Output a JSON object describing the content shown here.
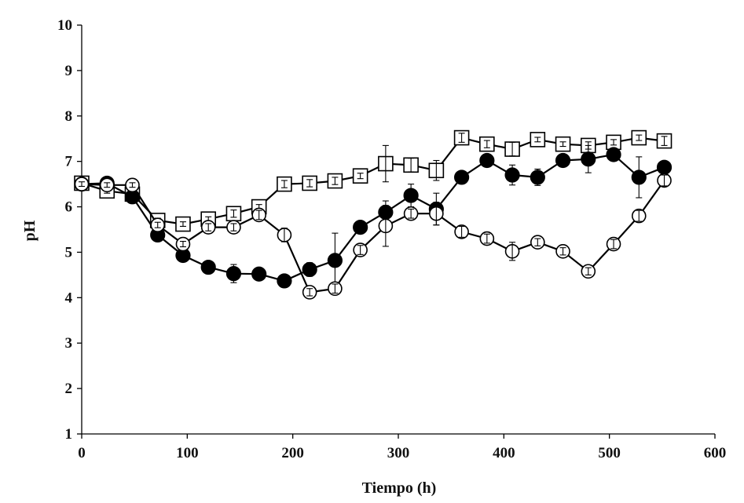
{
  "chart_data": {
    "type": "line",
    "title": "",
    "xlabel": "Tiempo (h)",
    "ylabel": "pH",
    "xlim": [
      0,
      600
    ],
    "ylim": [
      1,
      10
    ],
    "xticks": [
      0,
      100,
      200,
      300,
      400,
      500,
      600
    ],
    "yticks": [
      1,
      2,
      3,
      4,
      5,
      6,
      7,
      8,
      9,
      10
    ],
    "grid": false,
    "legend": "none",
    "series": [
      {
        "name": "open-squares",
        "marker": "square-open",
        "x": [
          0,
          24,
          48,
          72,
          96,
          120,
          144,
          168,
          192,
          216,
          240,
          264,
          288,
          312,
          336,
          360,
          384,
          408,
          432,
          456,
          480,
          504,
          528,
          552
        ],
        "values": [
          6.52,
          6.35,
          6.28,
          5.7,
          5.62,
          5.73,
          5.85,
          6.0,
          6.5,
          6.52,
          6.57,
          6.68,
          6.95,
          6.92,
          6.8,
          7.52,
          7.38,
          7.27,
          7.48,
          7.38,
          7.35,
          7.42,
          7.52,
          7.45
        ],
        "errors": [
          0.05,
          0.05,
          0.05,
          0.05,
          0.05,
          0.05,
          0.08,
          0.05,
          0.08,
          0.08,
          0.08,
          0.06,
          0.4,
          0.15,
          0.22,
          0.1,
          0.08,
          0.15,
          0.05,
          0.05,
          0.08,
          0.06,
          0.06,
          0.1
        ]
      },
      {
        "name": "filled-circles",
        "marker": "circle-filled",
        "x": [
          0,
          24,
          48,
          72,
          96,
          120,
          144,
          168,
          192,
          216,
          240,
          264,
          288,
          312,
          336,
          360,
          384,
          408,
          432,
          456,
          480,
          504,
          528,
          552
        ],
        "values": [
          6.5,
          6.52,
          6.22,
          5.38,
          4.93,
          4.67,
          4.53,
          4.52,
          4.37,
          4.62,
          4.82,
          5.55,
          5.88,
          6.25,
          5.95,
          6.65,
          7.02,
          6.7,
          6.65,
          7.02,
          7.05,
          7.15,
          6.65,
          6.87
        ],
        "errors": [
          0.05,
          0.05,
          0.08,
          0.12,
          0.08,
          0.06,
          0.2,
          0.05,
          0.08,
          0.15,
          0.6,
          0.1,
          0.25,
          0.25,
          0.35,
          0.08,
          0.12,
          0.22,
          0.18,
          0.1,
          0.3,
          0.12,
          0.45,
          0.12
        ]
      },
      {
        "name": "open-circles",
        "marker": "circle-open",
        "x": [
          0,
          24,
          48,
          72,
          96,
          120,
          144,
          168,
          192,
          216,
          240,
          264,
          288,
          312,
          336,
          360,
          384,
          408,
          432,
          456,
          480,
          504,
          528,
          552
        ],
        "values": [
          6.5,
          6.48,
          6.48,
          5.6,
          5.18,
          5.55,
          5.55,
          5.82,
          5.38,
          4.12,
          4.2,
          5.05,
          5.58,
          5.85,
          5.85,
          5.45,
          5.3,
          5.02,
          5.22,
          5.02,
          4.58,
          5.18,
          5.8,
          6.58
        ],
        "errors": [
          0.05,
          0.05,
          0.05,
          0.06,
          0.06,
          0.08,
          0.08,
          0.1,
          0.15,
          0.08,
          0.1,
          0.1,
          0.45,
          0.1,
          0.25,
          0.12,
          0.1,
          0.2,
          0.08,
          0.08,
          0.08,
          0.1,
          0.12,
          0.12
        ]
      }
    ]
  }
}
